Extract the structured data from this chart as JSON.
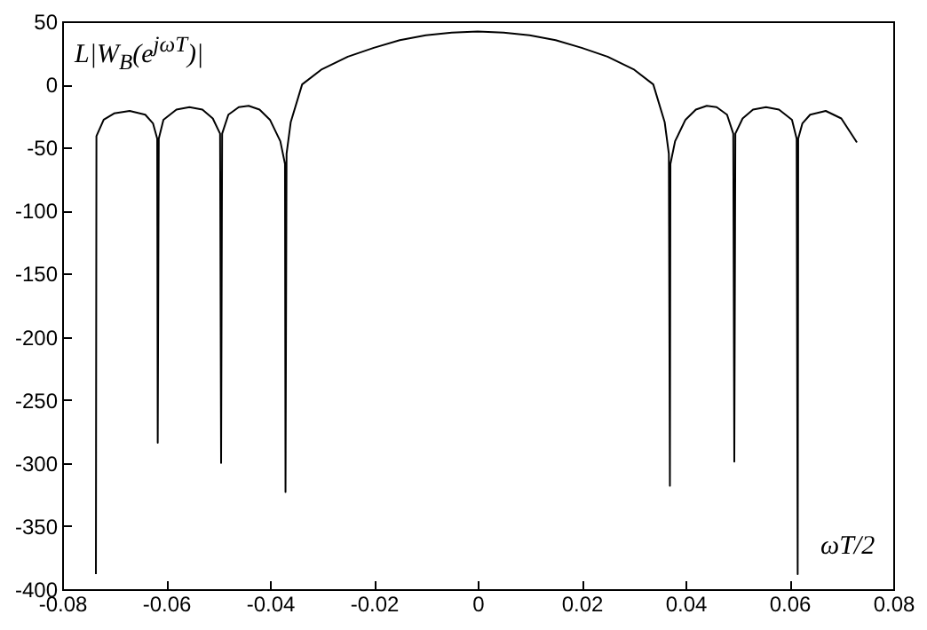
{
  "chart_data": {
    "type": "line",
    "xlabel": "ωT/2",
    "ylabel": "L|W$_{B}$(e$^{jωT}$)|",
    "xlim": [
      -0.08,
      0.08
    ],
    "xticks": [
      -0.08,
      -0.06,
      -0.04,
      -0.02,
      0,
      0.02,
      0.04,
      0.06,
      0.08
    ],
    "ylim": [
      -400,
      50
    ],
    "yticks": [
      -400,
      -350,
      -300,
      -250,
      -200,
      -150,
      -100,
      -50,
      0,
      50
    ],
    "grid": false,
    "marker": "none",
    "line_style": "solid",
    "series": [
      {
        "color": "#000000",
        "x": [
          -0.0735,
          -0.0734,
          -0.072,
          -0.07,
          -0.067,
          -0.064,
          -0.0625,
          -0.0617,
          -0.0616,
          -0.0614,
          -0.0605,
          -0.058,
          -0.0555,
          -0.053,
          -0.051,
          -0.0496,
          -0.0494,
          -0.0492,
          -0.048,
          -0.046,
          -0.0441,
          -0.042,
          -0.04,
          -0.038,
          -0.0371,
          -0.037,
          -0.0368,
          -0.036,
          -0.0338,
          -0.03,
          -0.025,
          -0.02,
          -0.015,
          -0.01,
          -0.005,
          0,
          0.005,
          0.01,
          0.015,
          0.02,
          0.025,
          0.03,
          0.0338,
          0.036,
          0.0368,
          0.037,
          0.0371,
          0.038,
          0.04,
          0.042,
          0.0441,
          0.046,
          0.048,
          0.0492,
          0.0494,
          0.0496,
          0.051,
          0.053,
          0.0555,
          0.058,
          0.0605,
          0.0614,
          0.0616,
          0.0617,
          0.0625,
          0.064,
          0.067,
          0.07,
          0.073
        ],
        "values": [
          -388,
          -41,
          -28,
          -23,
          -21,
          -24,
          -31,
          -43,
          -284,
          -43,
          -28,
          -20,
          -18,
          -20,
          -27,
          -39,
          -300,
          -39,
          -24,
          -18,
          -17,
          -20,
          -28,
          -45,
          -63,
          -323,
          -55,
          -30,
          0,
          12,
          22,
          29,
          35,
          39,
          41,
          42,
          41,
          39,
          35,
          29,
          22,
          12,
          0,
          -30,
          -55,
          -318,
          -63,
          -45,
          -28,
          -20,
          -17,
          -18,
          -24,
          -39,
          -299,
          -39,
          -27,
          -20,
          -18,
          -20,
          -28,
          -43,
          -388,
          -43,
          -31,
          -24,
          -21,
          -27,
          -46
        ]
      }
    ]
  }
}
